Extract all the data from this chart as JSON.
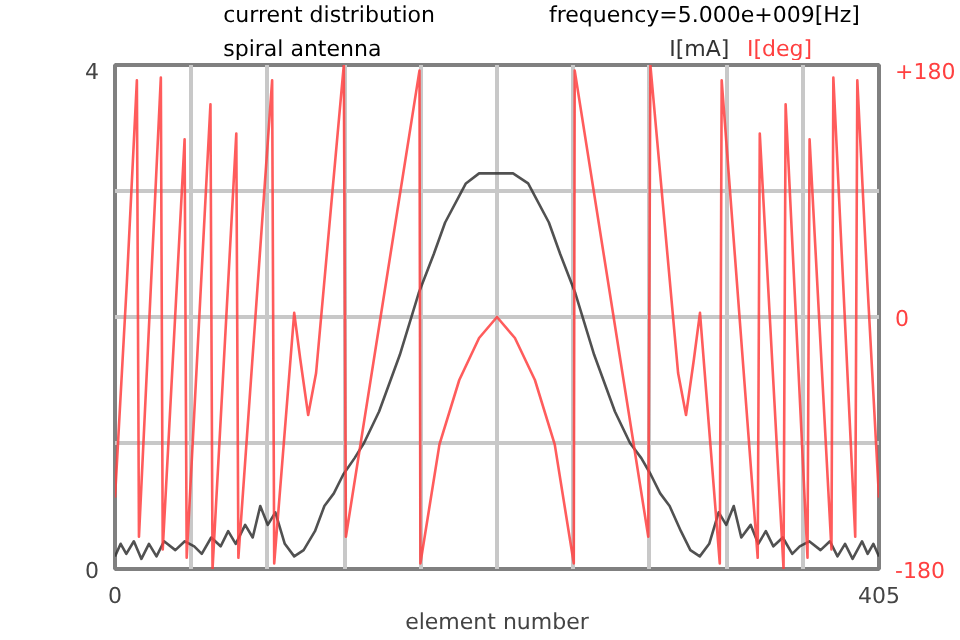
{
  "chart_data": {
    "type": "line",
    "title": "current distribution",
    "subtitle": "spiral antenna",
    "xlabel": "element number",
    "annotations": [
      "frequency=5.000e+009[Hz]"
    ],
    "grid": true,
    "marker": "none",
    "line_style": "solid",
    "xlim": [
      0,
      405
    ],
    "xticks": [
      0,
      {
        "value": 40.5,
        "label": null
      },
      {
        "value": 81,
        "label": null
      },
      {
        "value": 121.5,
        "label": null
      },
      {
        "value": 162,
        "label": null
      },
      {
        "value": 202.5,
        "label": null
      },
      {
        "value": 243,
        "label": null
      },
      {
        "value": 283.5,
        "label": null
      },
      {
        "value": 324,
        "label": null
      },
      {
        "value": 364.5,
        "label": null
      },
      405
    ],
    "ylim": [
      0,
      4
    ],
    "yticks": [
      0,
      {
        "value": 1,
        "label": null
      },
      {
        "value": 2,
        "label": null
      },
      {
        "value": 3,
        "label": null
      },
      4
    ],
    "y2lim": [
      -180,
      180
    ],
    "y2ticks": [
      {
        "value": -180,
        "label": "-180"
      },
      {
        "value": -90,
        "label": null
      },
      0,
      {
        "value": 90,
        "label": null
      },
      {
        "value": 180,
        "label": "+180"
      }
    ],
    "series": [
      {
        "name": "I[mA]",
        "color": "#333333",
        "x": [
          0,
          3,
          6,
          10,
          14,
          18,
          22,
          26,
          32,
          37,
          42,
          46,
          51,
          56,
          60,
          64,
          69,
          73,
          77,
          81,
          85,
          90,
          95,
          100,
          106,
          111,
          116,
          121,
          127,
          132,
          140,
          151,
          161,
          169,
          175,
          186,
          193,
          211,
          219,
          230,
          236,
          244,
          254,
          265,
          273,
          279,
          284,
          289,
          294,
          300,
          305,
          310,
          315,
          320,
          324,
          328,
          332,
          337,
          341,
          345,
          349,
          354,
          359,
          363,
          368,
          374,
          379,
          383,
          387,
          391,
          396,
          399,
          402,
          405
        ],
        "values": [
          0.1,
          0.2,
          0.12,
          0.22,
          0.08,
          0.2,
          0.1,
          0.22,
          0.15,
          0.22,
          0.18,
          0.12,
          0.25,
          0.18,
          0.3,
          0.2,
          0.35,
          0.25,
          0.5,
          0.35,
          0.45,
          0.2,
          0.1,
          0.15,
          0.3,
          0.5,
          0.6,
          0.75,
          0.88,
          1.0,
          1.25,
          1.7,
          2.19,
          2.5,
          2.75,
          3.06,
          3.14,
          3.14,
          3.06,
          2.75,
          2.5,
          2.19,
          1.7,
          1.25,
          1.0,
          0.88,
          0.75,
          0.6,
          0.5,
          0.3,
          0.15,
          0.1,
          0.2,
          0.45,
          0.35,
          0.5,
          0.25,
          0.35,
          0.2,
          0.3,
          0.18,
          0.25,
          0.12,
          0.18,
          0.22,
          0.15,
          0.22,
          0.1,
          0.2,
          0.08,
          0.22,
          0.12,
          0.2,
          0.1
        ]
      },
      {
        "name": "I[deg]",
        "color": "#ff4040",
        "axis": "y2",
        "x": [
          0,
          6.3,
          11.6,
          12.7,
          24.3,
          25.3,
          36.9,
          38,
          50.6,
          51.7,
          64.3,
          65.4,
          83.3,
          84.4,
          95,
          98.2,
          102.4,
          106.6,
          121.3,
          122.4,
          161.4,
          161.9,
          172,
          182.5,
          193,
          202.5,
          212,
          222.6,
          233.1,
          243.2,
          243.7,
          282.7,
          283.8,
          298.5,
          302.7,
          306.9,
          310.1,
          320.6,
          321.6,
          340.7,
          341.8,
          354.4,
          355.5,
          367.1,
          368.2,
          379.8,
          380.8,
          392.4,
          393.5,
          398.8,
          405
        ],
        "values": [
          -129,
          25,
          169,
          -157,
          171,
          -166,
          127,
          -172,
          152,
          -180,
          131,
          -172,
          169,
          -176,
          3,
          -30,
          -70,
          -40,
          180,
          -157,
          176,
          -176,
          -91,
          -45,
          -15,
          0,
          -15,
          -45,
          -91,
          -176,
          176,
          -157,
          180,
          -40,
          -70,
          -30,
          3,
          -176,
          169,
          -172,
          131,
          -180,
          152,
          -172,
          127,
          -166,
          171,
          -157,
          169,
          25,
          -129
        ]
      }
    ]
  }
}
